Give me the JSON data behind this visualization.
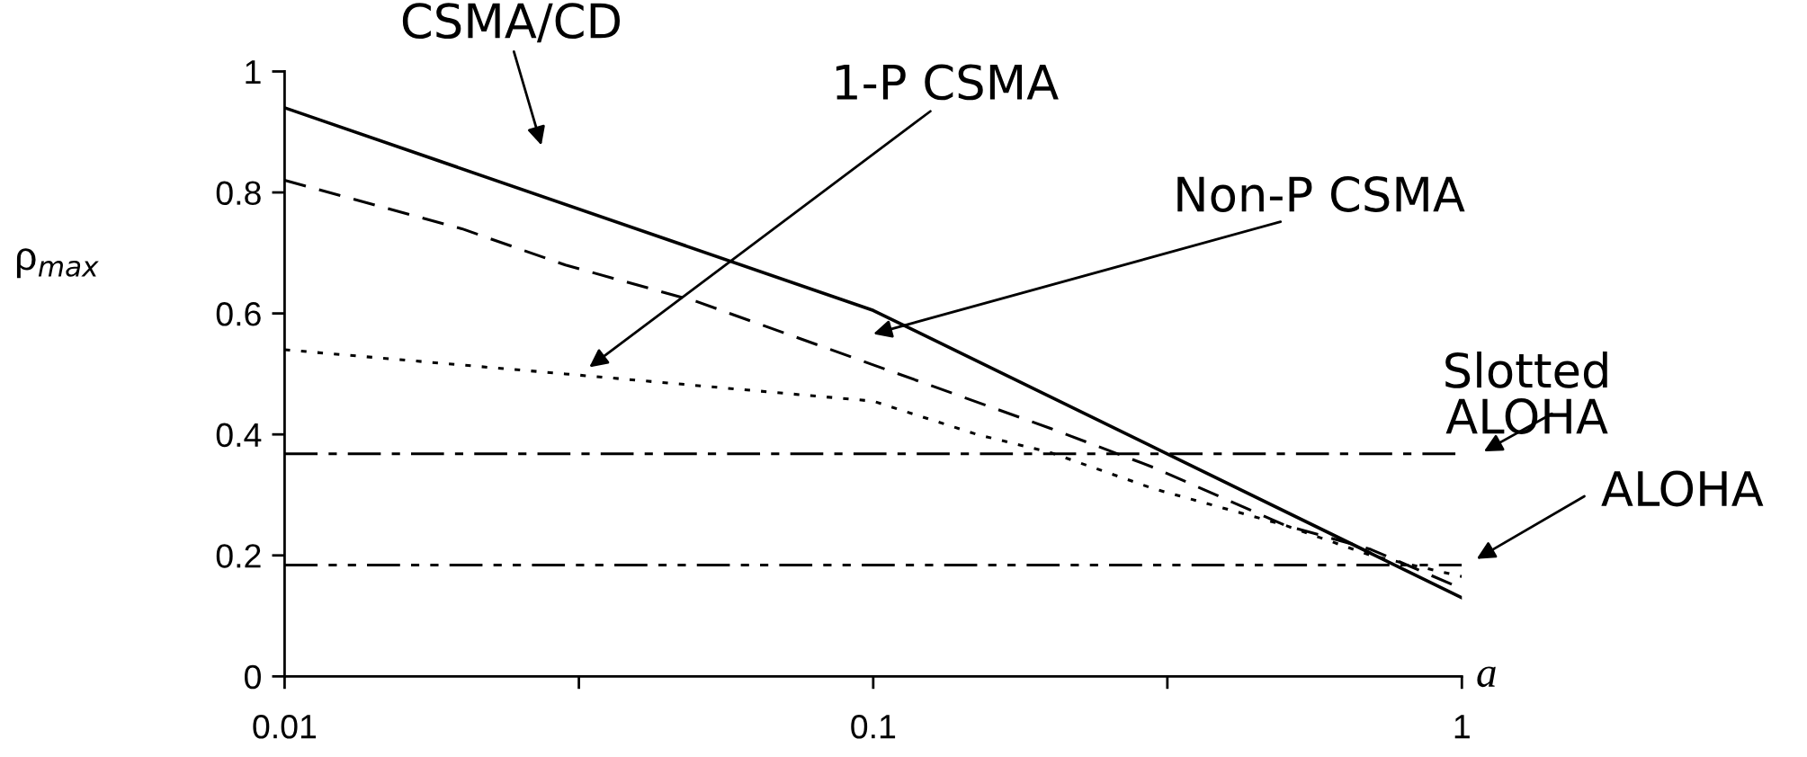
{
  "chart_data": {
    "type": "line",
    "xlabel": "a",
    "ylabel": "ρ$_{max}$",
    "log": "x",
    "xlim": [
      0.01,
      1
    ],
    "xticks": [
      0.01,
      {
        "value": 0.03162,
        "label": null
      },
      0.1,
      {
        "value": 0.316,
        "label": null
      },
      1
    ],
    "ylim": [
      0,
      1
    ],
    "yticks": [
      0,
      0.2,
      0.4,
      0.6,
      0.8,
      1
    ],
    "grid": false,
    "legend": false,
    "marker": "none",
    "series": [
      {
        "color": "#000000",
        "line_style": "solid",
        "x": [
          0.01,
          0.1,
          1
        ],
        "values": [
          0.94,
          0.605,
          0.13
        ]
      },
      {
        "color": "#000000",
        "line_style": "dashed",
        "x": [
          0.01,
          0.02,
          0.03,
          0.05,
          0.1,
          0.2,
          0.3,
          0.5,
          0.7,
          1
        ],
        "values": [
          0.82,
          0.74,
          0.68,
          0.62,
          0.515,
          0.41,
          0.345,
          0.25,
          0.21,
          0.145
        ]
      },
      {
        "color": "#000000",
        "line_style": "dotted",
        "x": [
          0.01,
          0.03,
          0.1,
          0.15,
          0.2,
          0.3,
          0.5,
          0.7,
          1
        ],
        "values": [
          0.54,
          0.5,
          0.455,
          0.4,
          0.37,
          0.31,
          0.25,
          0.2,
          0.165
        ]
      },
      {
        "color": "#000000",
        "line_style": "dashdot",
        "x": [
          0.01,
          1
        ],
        "values": [
          0.368,
          0.368
        ]
      },
      {
        "color": "#000000",
        "line_style": "dashdotdot",
        "x": [
          0.01,
          1
        ],
        "values": [
          0.184,
          0.184
        ]
      }
    ],
    "annotations": [
      "CSMA/CD",
      "1-P CSMA",
      "Non-P CSMA",
      "Slotted\nALOHA",
      "ALOHA"
    ]
  }
}
